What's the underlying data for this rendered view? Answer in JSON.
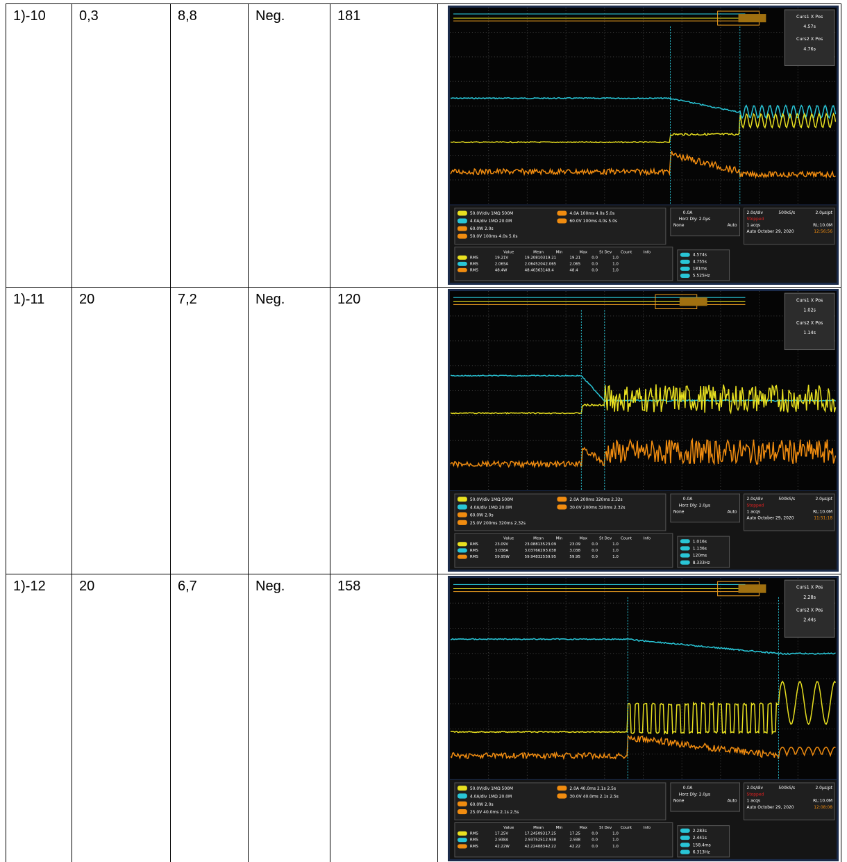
{
  "measure_header": [
    "Value",
    "Mean",
    "Min",
    "Max",
    "St Dev",
    "Count",
    "Info"
  ],
  "rows": [
    {
      "cells": [
        "1)-10",
        "0,3",
        "8,8",
        "Neg.",
        "181"
      ],
      "scope": {
        "curs1_label": "Curs1 X Pos",
        "curs1": "4.57s",
        "curs2_label": "Curs2 X Pos",
        "curs2": "4.76s",
        "channels": [
          "50.0V/div   1MΩ  500M",
          "4.0A/div   1MΩ  20.0M",
          "60.0W   2.0s",
          "50.0V   100ms   4.0s   5.0s"
        ],
        "refs": [
          "4.0A   100ms   4.0s   5.0s",
          "60.0V   100ms   4.0s   5.0s"
        ],
        "trigger": [
          "0.0A",
          "Horz Dly:  2.0µs",
          "None",
          "Auto"
        ],
        "timebase": [
          "2.0s/div",
          "500kS/s",
          "2.0µs/pt",
          "Stopped",
          "1 acqs",
          "RL:10.0M",
          "Auto   October 29, 2020",
          "12:56:56"
        ],
        "measurements": [
          [
            "RMS",
            "19.21V",
            "19.208103",
            "19.21",
            "19.21",
            "0.0",
            "1.0"
          ],
          [
            "RMS",
            "2.065A",
            "2.0645204",
            "2.065",
            "2.065",
            "0.0",
            "1.0"
          ],
          [
            "RMS",
            "48.4W",
            "48.403631",
            "48.4",
            "48.4",
            "0.0",
            "1.0"
          ]
        ],
        "readouts": [
          "4.574s",
          "4.755s",
          "181ms",
          "5.525Hz"
        ]
      }
    },
    {
      "cells": [
        "1)-11",
        "20",
        "7,2",
        "Neg.",
        "120"
      ],
      "scope": {
        "curs1_label": "Curs1 X Pos",
        "curs1": "1.02s",
        "curs2_label": "Curs2 X Pos",
        "curs2": "1.14s",
        "channels": [
          "50.0V/div   1MΩ  500M",
          "4.0A/div   1MΩ  20.0M",
          "60.0W   2.0s",
          "25.0V   200ms   320ms   2.32s"
        ],
        "refs": [
          "2.0A   200ms   320ms   2.32s",
          "30.0V   200ms   320ms   2.32s"
        ],
        "trigger": [
          "0.0A",
          "Horz Dly:  2.0µs",
          "None",
          "Auto"
        ],
        "timebase": [
          "2.0s/div",
          "500kS/s",
          "2.0µs/pt",
          "Stopped",
          "1 acqs",
          "RL:10.0M",
          "Auto   October 29, 2020",
          "11:51:18"
        ],
        "measurements": [
          [
            "RMS",
            "23.09V",
            "23.088135",
            "23.09",
            "23.09",
            "0.0",
            "1.0"
          ],
          [
            "RMS",
            "3.038A",
            "3.0376629",
            "3.038",
            "3.038",
            "0.0",
            "1.0"
          ],
          [
            "RMS",
            "59.95W",
            "59.948325",
            "59.95",
            "59.95",
            "0.0",
            "1.0"
          ]
        ],
        "readouts": [
          "1.016s",
          "1.136s",
          "120ms",
          "8.333Hz"
        ]
      }
    },
    {
      "cells": [
        "1)-12",
        "20",
        "6,7",
        "Neg.",
        "158"
      ],
      "scope": {
        "curs1_label": "Curs1 X Pos",
        "curs1": "2.28s",
        "curs2_label": "Curs2 X Pos",
        "curs2": "2.44s",
        "channels": [
          "50.0V/div   1MΩ  500M",
          "4.0A/div   1MΩ  20.0M",
          "60.0W   2.0s",
          "25.0V   40.0ms   2.1s   2.5s"
        ],
        "refs": [
          "2.0A   40.0ms   2.1s   2.5s",
          "30.0V   40.0ms   2.1s   2.5s"
        ],
        "trigger": [
          "0.0A",
          "Horz Dly:  2.0µs",
          "None",
          "Auto"
        ],
        "timebase": [
          "2.0s/div",
          "500kS/s",
          "2.0µs/pt",
          "Stopped",
          "1 acqs",
          "RL:10.0M",
          "Auto   October 29, 2020",
          "12:08:08"
        ],
        "measurements": [
          [
            "RMS",
            "17.25V",
            "17.245093",
            "17.25",
            "17.25",
            "0.0",
            "1.0"
          ],
          [
            "RMS",
            "2.938A",
            "2.9375251",
            "2.938",
            "2.938",
            "0.0",
            "1.0"
          ],
          [
            "RMS",
            "42.22W",
            "42.224083",
            "42.22",
            "42.22",
            "0.0",
            "1.0"
          ]
        ],
        "readouts": [
          "2.283s",
          "2.441s",
          "158.4ms",
          "6.313Hz"
        ]
      }
    }
  ]
}
